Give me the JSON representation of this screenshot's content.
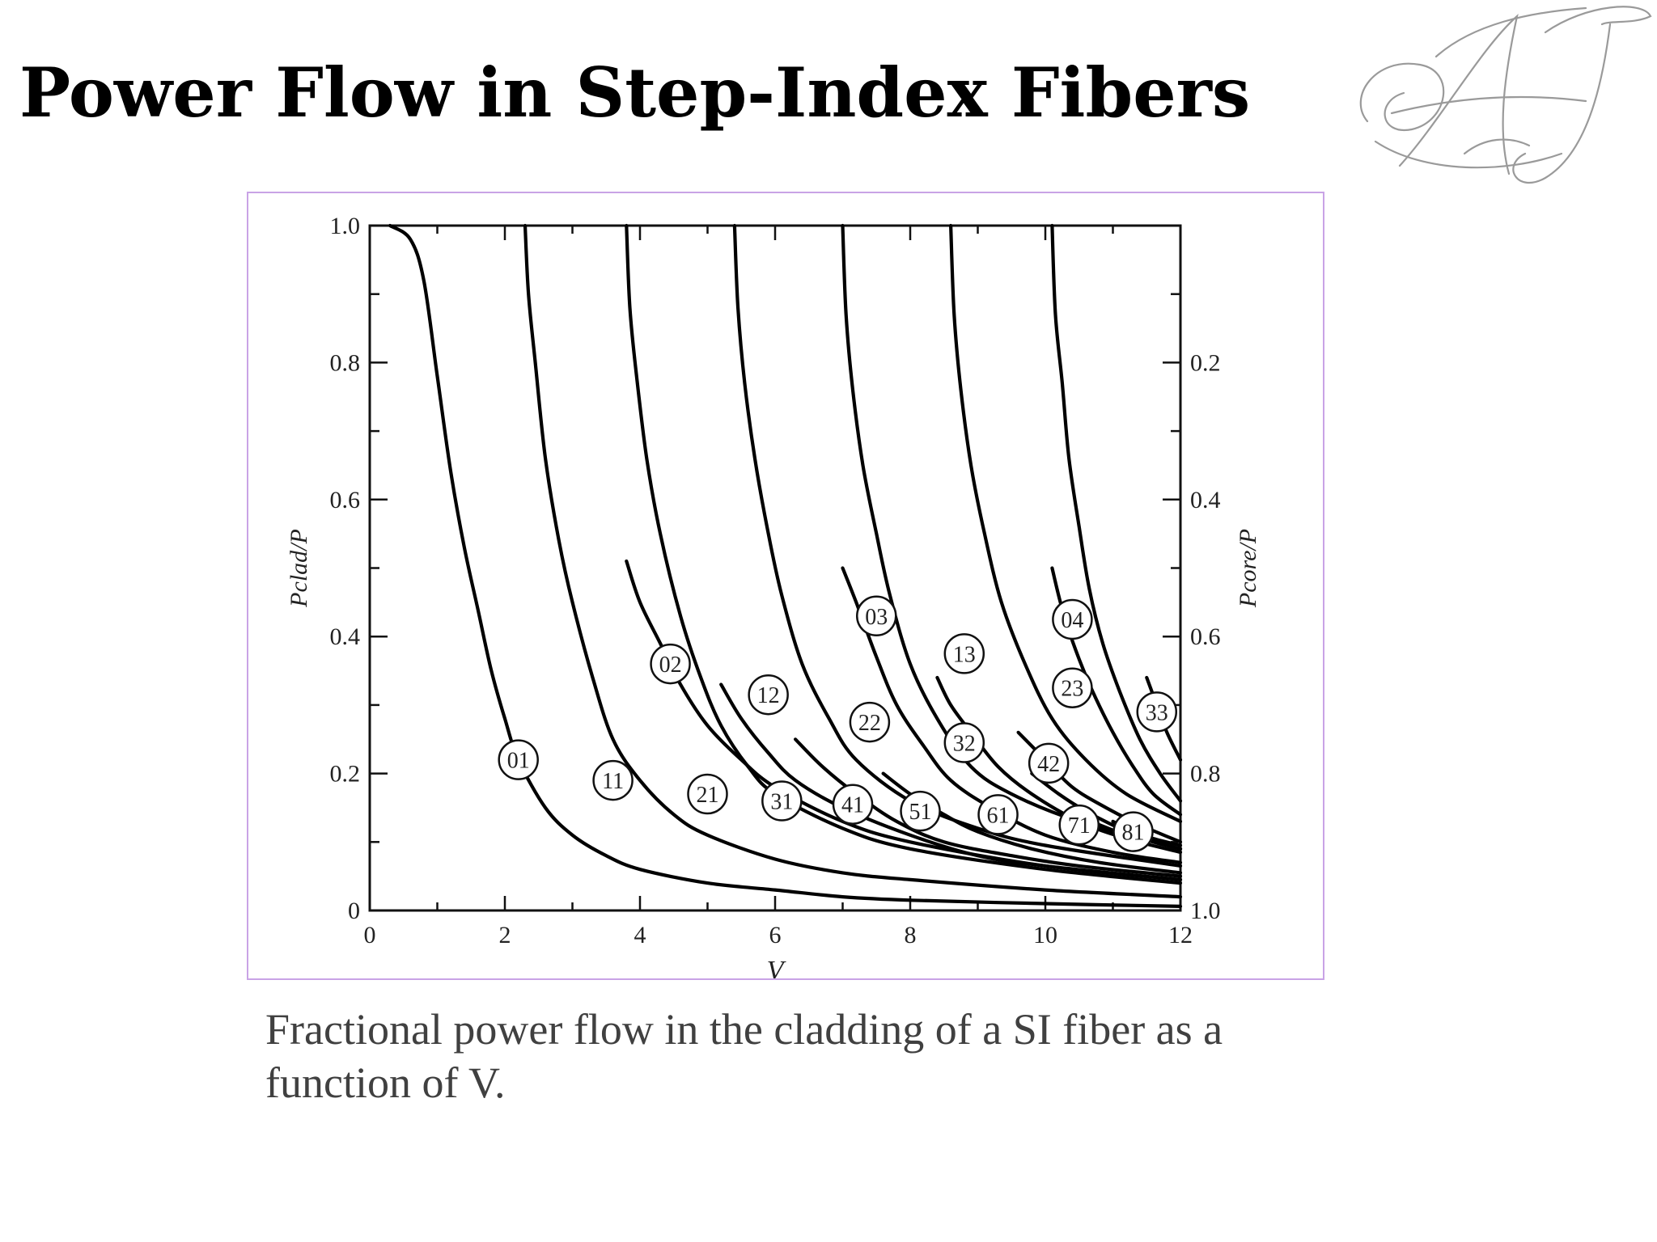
{
  "slide": {
    "title": "Power Flow in Step-Index Fibers",
    "caption": "Fractional power flow in the cladding of a SI fiber as a function of V.",
    "logo_text": "AJ"
  },
  "colors": {
    "title": "#000000",
    "caption": "#404040",
    "frame_border": "#c9a3e6",
    "curve": "#000000",
    "logo_stroke": "#9a9a9a"
  },
  "chart_data": {
    "type": "line",
    "title": "",
    "xlabel": "V",
    "ylabel": "Pclad/P",
    "y2label": "Pcore/P",
    "xlim": [
      0,
      12
    ],
    "ylim": [
      0,
      1.0
    ],
    "x_ticks": [
      "0",
      "2",
      "4",
      "6",
      "8",
      "10",
      "12"
    ],
    "y_ticks": [
      "0",
      "0.2",
      "0.4",
      "0.6",
      "0.8",
      "1.0"
    ],
    "y2_ticks": [
      "1.0",
      "0.8",
      "0.6",
      "0.4",
      "0.2"
    ],
    "grid": false,
    "legend": "inline circled mode labels",
    "series": [
      {
        "name": "01",
        "points": [
          [
            0.3,
            1.0
          ],
          [
            0.6,
            0.98
          ],
          [
            0.8,
            0.92
          ],
          [
            1.0,
            0.78
          ],
          [
            1.2,
            0.64
          ],
          [
            1.4,
            0.53
          ],
          [
            1.6,
            0.44
          ],
          [
            1.8,
            0.35
          ],
          [
            2.0,
            0.28
          ],
          [
            2.2,
            0.22
          ],
          [
            2.6,
            0.15
          ],
          [
            3.0,
            0.11
          ],
          [
            3.5,
            0.08
          ],
          [
            4.0,
            0.06
          ],
          [
            5.0,
            0.04
          ],
          [
            6.0,
            0.03
          ],
          [
            7.0,
            0.02
          ],
          [
            8.0,
            0.015
          ],
          [
            10.0,
            0.01
          ],
          [
            12.0,
            0.006
          ]
        ],
        "label_at": [
          2.2,
          0.22
        ]
      },
      {
        "name": "11",
        "points": [
          [
            2.3,
            1.0
          ],
          [
            2.35,
            0.9
          ],
          [
            2.45,
            0.8
          ],
          [
            2.6,
            0.66
          ],
          [
            2.8,
            0.54
          ],
          [
            3.0,
            0.45
          ],
          [
            3.3,
            0.34
          ],
          [
            3.6,
            0.25
          ],
          [
            4.0,
            0.19
          ],
          [
            4.5,
            0.14
          ],
          [
            5.0,
            0.11
          ],
          [
            6.0,
            0.075
          ],
          [
            7.0,
            0.055
          ],
          [
            8.0,
            0.045
          ],
          [
            10.0,
            0.03
          ],
          [
            12.0,
            0.02
          ]
        ],
        "label_at": [
          3.6,
          0.19
        ]
      },
      {
        "name": "21",
        "points": [
          [
            3.8,
            1.0
          ],
          [
            3.85,
            0.88
          ],
          [
            3.95,
            0.78
          ],
          [
            4.1,
            0.66
          ],
          [
            4.3,
            0.55
          ],
          [
            4.6,
            0.43
          ],
          [
            4.9,
            0.34
          ],
          [
            5.2,
            0.27
          ],
          [
            5.6,
            0.21
          ],
          [
            6.0,
            0.17
          ],
          [
            7.0,
            0.12
          ],
          [
            8.0,
            0.09
          ],
          [
            10.0,
            0.06
          ],
          [
            12.0,
            0.04
          ]
        ],
        "label_at": [
          5.0,
          0.17
        ]
      },
      {
        "name": "02",
        "points": [
          [
            3.8,
            0.51
          ],
          [
            4.0,
            0.45
          ],
          [
            4.3,
            0.39
          ],
          [
            4.6,
            0.33
          ],
          [
            5.0,
            0.27
          ],
          [
            5.5,
            0.22
          ],
          [
            6.0,
            0.18
          ],
          [
            7.0,
            0.13
          ],
          [
            8.0,
            0.1
          ],
          [
            10.0,
            0.065
          ],
          [
            12.0,
            0.045
          ]
        ],
        "label_at": [
          4.45,
          0.36
        ]
      },
      {
        "name": "31",
        "points": [
          [
            5.4,
            1.0
          ],
          [
            5.45,
            0.88
          ],
          [
            5.55,
            0.77
          ],
          [
            5.7,
            0.66
          ],
          [
            5.9,
            0.55
          ],
          [
            6.1,
            0.46
          ],
          [
            6.4,
            0.36
          ],
          [
            6.8,
            0.28
          ],
          [
            7.2,
            0.22
          ],
          [
            8.0,
            0.16
          ],
          [
            9.0,
            0.12
          ],
          [
            10.0,
            0.095
          ],
          [
            12.0,
            0.065
          ]
        ],
        "label_at": [
          6.1,
          0.16
        ]
      },
      {
        "name": "12",
        "points": [
          [
            5.2,
            0.33
          ],
          [
            5.5,
            0.28
          ],
          [
            5.9,
            0.23
          ],
          [
            6.3,
            0.19
          ],
          [
            7.0,
            0.15
          ],
          [
            8.0,
            0.11
          ],
          [
            9.0,
            0.08
          ],
          [
            10.0,
            0.065
          ],
          [
            12.0,
            0.045
          ]
        ],
        "label_at": [
          5.9,
          0.315
        ]
      },
      {
        "name": "41",
        "points": [
          [
            7.0,
            1.0
          ],
          [
            7.05,
            0.87
          ],
          [
            7.15,
            0.76
          ],
          [
            7.3,
            0.65
          ],
          [
            7.5,
            0.55
          ],
          [
            7.7,
            0.46
          ],
          [
            8.0,
            0.36
          ],
          [
            8.4,
            0.28
          ],
          [
            8.9,
            0.21
          ],
          [
            9.5,
            0.17
          ],
          [
            10.5,
            0.13
          ],
          [
            12.0,
            0.09
          ]
        ],
        "label_at": [
          7.15,
          0.155
        ]
      },
      {
        "name": "03",
        "points": [
          [
            7.0,
            0.5
          ],
          [
            7.2,
            0.45
          ],
          [
            7.5,
            0.37
          ],
          [
            7.8,
            0.3
          ],
          [
            8.2,
            0.24
          ],
          [
            8.6,
            0.19
          ],
          [
            9.2,
            0.15
          ],
          [
            10.0,
            0.11
          ],
          [
            11.0,
            0.085
          ],
          [
            12.0,
            0.07
          ]
        ],
        "label_at": [
          7.5,
          0.43
        ]
      },
      {
        "name": "22",
        "points": [
          [
            6.3,
            0.25
          ],
          [
            6.7,
            0.21
          ],
          [
            7.2,
            0.17
          ],
          [
            7.8,
            0.13
          ],
          [
            8.5,
            0.1
          ],
          [
            9.5,
            0.08
          ],
          [
            10.5,
            0.065
          ],
          [
            12.0,
            0.05
          ]
        ],
        "label_at": [
          7.4,
          0.275
        ]
      },
      {
        "name": "51",
        "points": [
          [
            8.6,
            1.0
          ],
          [
            8.65,
            0.87
          ],
          [
            8.75,
            0.76
          ],
          [
            8.9,
            0.65
          ],
          [
            9.1,
            0.55
          ],
          [
            9.35,
            0.45
          ],
          [
            9.7,
            0.36
          ],
          [
            10.1,
            0.28
          ],
          [
            10.6,
            0.22
          ],
          [
            11.2,
            0.17
          ],
          [
            12.0,
            0.13
          ]
        ],
        "label_at": [
          8.15,
          0.145
        ]
      },
      {
        "name": "13",
        "points": [
          [
            8.4,
            0.34
          ],
          [
            8.6,
            0.3
          ],
          [
            8.9,
            0.26
          ],
          [
            9.3,
            0.21
          ],
          [
            9.8,
            0.17
          ],
          [
            10.5,
            0.13
          ],
          [
            11.2,
            0.105
          ],
          [
            12.0,
            0.085
          ]
        ],
        "label_at": [
          8.8,
          0.375
        ]
      },
      {
        "name": "32",
        "points": [
          [
            7.6,
            0.2
          ],
          [
            8.0,
            0.17
          ],
          [
            8.5,
            0.14
          ],
          [
            9.0,
            0.115
          ],
          [
            9.8,
            0.09
          ],
          [
            10.8,
            0.07
          ],
          [
            12.0,
            0.055
          ]
        ],
        "label_at": [
          8.8,
          0.245
        ]
      },
      {
        "name": "61",
        "points": [
          [
            10.1,
            1.0
          ],
          [
            10.15,
            0.87
          ],
          [
            10.25,
            0.77
          ],
          [
            10.35,
            0.66
          ],
          [
            10.5,
            0.56
          ],
          [
            10.65,
            0.47
          ],
          [
            10.85,
            0.39
          ],
          [
            11.1,
            0.32
          ],
          [
            11.4,
            0.25
          ],
          [
            11.7,
            0.2
          ],
          [
            12.0,
            0.16
          ]
        ],
        "label_at": [
          9.3,
          0.14
        ]
      },
      {
        "name": "04",
        "points": [
          [
            10.1,
            0.5
          ],
          [
            10.25,
            0.44
          ],
          [
            10.45,
            0.38
          ],
          [
            10.7,
            0.32
          ],
          [
            11.0,
            0.26
          ],
          [
            11.3,
            0.21
          ],
          [
            11.6,
            0.17
          ],
          [
            12.0,
            0.14
          ]
        ],
        "label_at": [
          10.4,
          0.425
        ]
      },
      {
        "name": "23",
        "points": [
          [
            9.6,
            0.26
          ],
          [
            10.0,
            0.22
          ],
          [
            10.4,
            0.18
          ],
          [
            10.9,
            0.15
          ],
          [
            11.4,
            0.125
          ],
          [
            12.0,
            0.1
          ]
        ],
        "label_at": [
          10.4,
          0.325
        ]
      },
      {
        "name": "42",
        "points": [
          [
            9.8,
            0.2
          ],
          [
            10.2,
            0.17
          ],
          [
            10.6,
            0.145
          ],
          [
            11.1,
            0.12
          ],
          [
            11.6,
            0.1
          ],
          [
            12.0,
            0.09
          ]
        ],
        "label_at": [
          10.05,
          0.215
        ]
      },
      {
        "name": "71",
        "points": [
          [
            10.4,
            0.14
          ],
          [
            10.8,
            0.125
          ],
          [
            11.2,
            0.11
          ],
          [
            11.6,
            0.1
          ],
          [
            12.0,
            0.09
          ]
        ],
        "label_at": [
          10.5,
          0.125
        ]
      },
      {
        "name": "81",
        "points": [
          [
            11.0,
            0.13
          ],
          [
            11.3,
            0.115
          ],
          [
            11.6,
            0.105
          ],
          [
            12.0,
            0.095
          ]
        ],
        "label_at": [
          11.3,
          0.115
        ]
      },
      {
        "name": "33",
        "points": [
          [
            11.5,
            0.34
          ],
          [
            11.65,
            0.3
          ],
          [
            11.8,
            0.26
          ],
          [
            12.0,
            0.22
          ]
        ],
        "label_at": [
          11.65,
          0.29
        ]
      }
    ]
  }
}
